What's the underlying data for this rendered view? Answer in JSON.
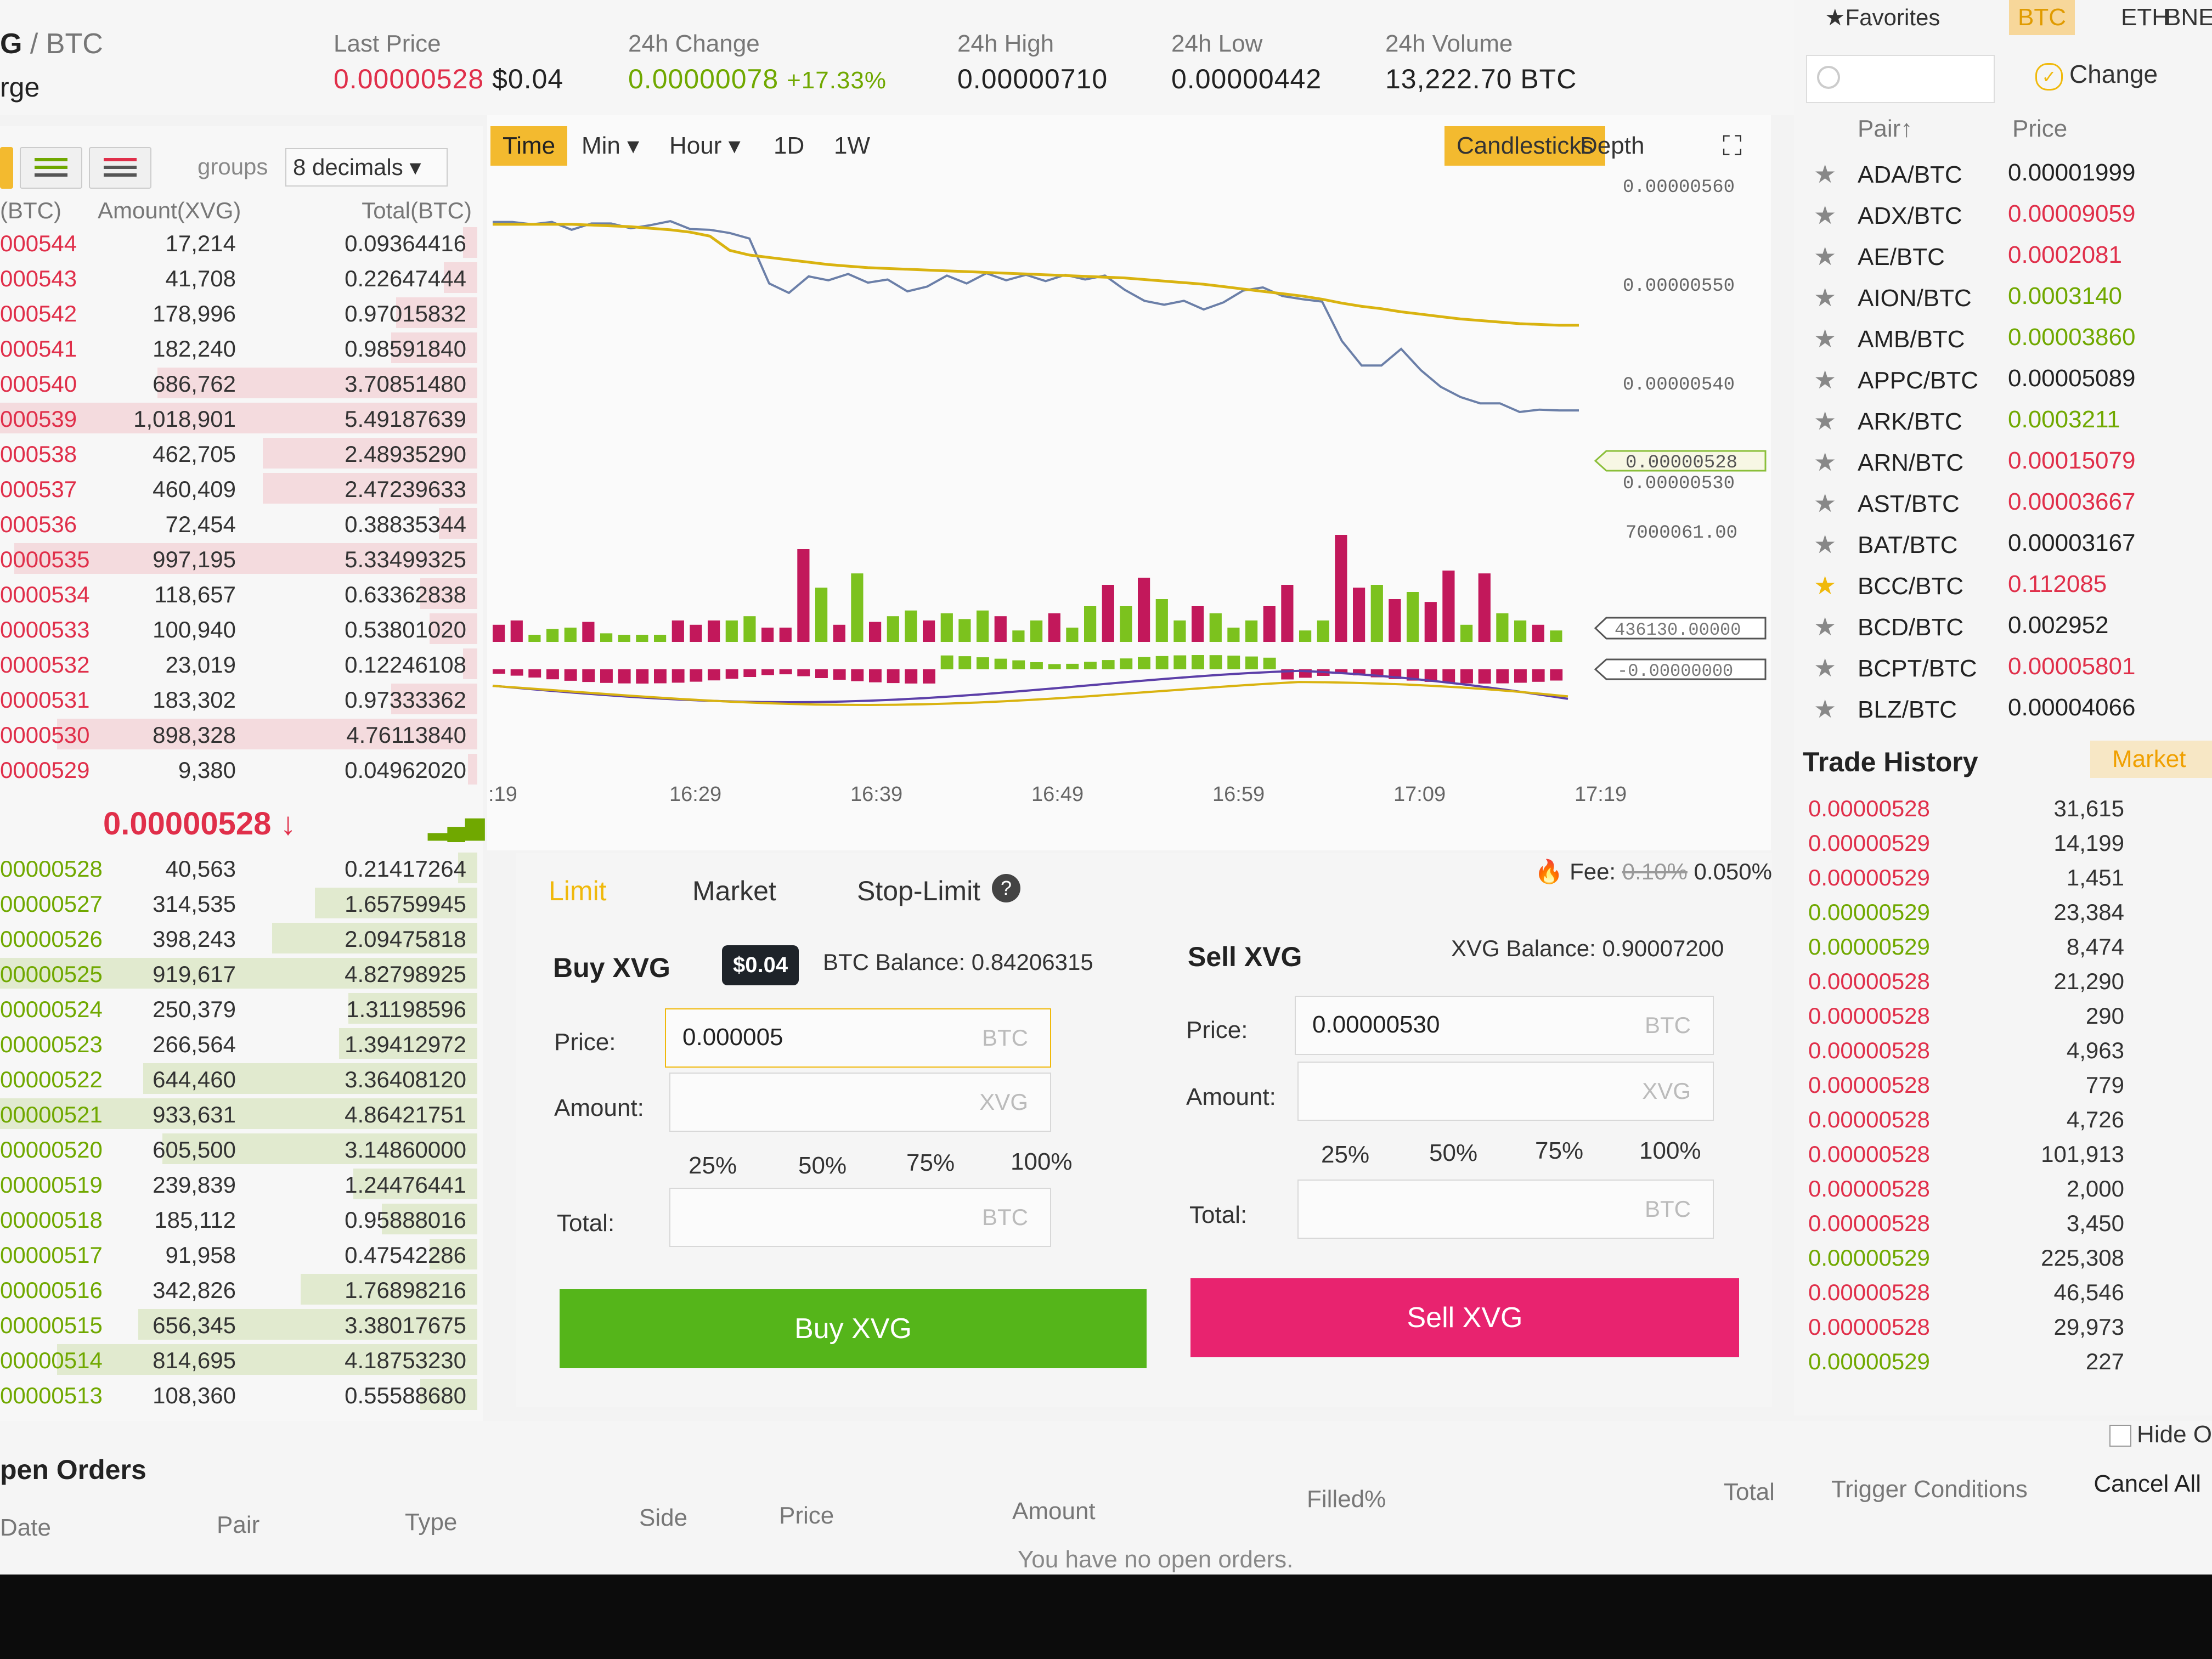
{
  "header": {
    "pair_left": "G",
    "pair_sep": " / ",
    "pair_quote": "BTC",
    "pair_sub": "rge",
    "last_price_label": "Last Price",
    "last_price": "0.00000528",
    "last_price_usd": "$0.04",
    "change_label": "24h Change",
    "change_value": "0.00000078",
    "change_pct": "+17.33%",
    "high_label": "24h High",
    "high_value": "0.00000710",
    "low_label": "24h Low",
    "low_value": "0.00000442",
    "volume_label": "24h Volume",
    "volume_value": "13,222.70 BTC"
  },
  "orderbook": {
    "groups_label": "groups",
    "decimals": "8 decimals",
    "col_price": "(BTC)",
    "col_amount": "Amount(XVG)",
    "col_total": "Total(BTC)",
    "asks": [
      {
        "p": "000544",
        "a": "17,214",
        "t": "0.09364416",
        "d": 0.03
      },
      {
        "p": "000543",
        "a": "41,708",
        "t": "0.22647444",
        "d": 0.07
      },
      {
        "p": "000542",
        "a": "178,996",
        "t": "0.97015832",
        "d": 0.17
      },
      {
        "p": "000541",
        "a": "182,240",
        "t": "0.98591840",
        "d": 0.18
      },
      {
        "p": "000540",
        "a": "686,762",
        "t": "3.70851480",
        "d": 0.67
      },
      {
        "p": "000539",
        "a": "1,018,901",
        "t": "5.49187639",
        "d": 1.0
      },
      {
        "p": "000538",
        "a": "462,705",
        "t": "2.48935290",
        "d": 0.45
      },
      {
        "p": "000537",
        "a": "460,409",
        "t": "2.47239633",
        "d": 0.45
      },
      {
        "p": "000536",
        "a": "72,454",
        "t": "0.38835344",
        "d": 0.08
      },
      {
        "p": "0000535",
        "a": "997,195",
        "t": "5.33499325",
        "d": 0.97
      },
      {
        "p": "0000534",
        "a": "118,657",
        "t": "0.63362838",
        "d": 0.12
      },
      {
        "p": "0000533",
        "a": "100,940",
        "t": "0.53801020",
        "d": 0.1
      },
      {
        "p": "0000532",
        "a": "23,019",
        "t": "0.12246108",
        "d": 0.03
      },
      {
        "p": "0000531",
        "a": "183,302",
        "t": "0.97333362",
        "d": 0.18
      },
      {
        "p": "0000530",
        "a": "898,328",
        "t": "4.76113840",
        "d": 0.88
      },
      {
        "p": "0000529",
        "a": "9,380",
        "t": "0.04962020",
        "d": 0.02
      }
    ],
    "last_price": "0.00000528 ↓",
    "bars_icon": "▂▄▆",
    "bids": [
      {
        "p": "00000528",
        "a": "40,563",
        "t": "0.21417264",
        "d": 0.04
      },
      {
        "p": "00000527",
        "a": "314,535",
        "t": "1.65759945",
        "d": 0.34
      },
      {
        "p": "00000526",
        "a": "398,243",
        "t": "2.09475818",
        "d": 0.43
      },
      {
        "p": "00000525",
        "a": "919,617",
        "t": "4.82798925",
        "d": 1.0
      },
      {
        "p": "00000524",
        "a": "250,379",
        "t": "1.31198596",
        "d": 0.27
      },
      {
        "p": "00000523",
        "a": "266,564",
        "t": "1.39412972",
        "d": 0.29
      },
      {
        "p": "00000522",
        "a": "644,460",
        "t": "3.36408120",
        "d": 0.7
      },
      {
        "p": "00000521",
        "a": "933,631",
        "t": "4.86421751",
        "d": 1.0
      },
      {
        "p": "00000520",
        "a": "605,500",
        "t": "3.14860000",
        "d": 0.66
      },
      {
        "p": "00000519",
        "a": "239,839",
        "t": "1.24476441",
        "d": 0.26
      },
      {
        "p": "00000518",
        "a": "185,112",
        "t": "0.95888016",
        "d": 0.2
      },
      {
        "p": "00000517",
        "a": "91,958",
        "t": "0.47542286",
        "d": 0.1
      },
      {
        "p": "00000516",
        "a": "342,826",
        "t": "1.76898216",
        "d": 0.37
      },
      {
        "p": "00000515",
        "a": "656,345",
        "t": "3.38017675",
        "d": 0.71
      },
      {
        "p": "00000514",
        "a": "814,695",
        "t": "4.18753230",
        "d": 0.88
      },
      {
        "p": "00000513",
        "a": "108,360",
        "t": "0.55588680",
        "d": 0.12
      }
    ]
  },
  "chart_tabs": {
    "time": "Time",
    "min": "Min ▾",
    "hour": "Hour ▾",
    "d1": "1D",
    "w1": "1W",
    "candlesticks": "Candlesticks",
    "depth": "Depth",
    "fullscreen_icon": "⛶"
  },
  "chart_data": {
    "type": "line",
    "x_labels": [
      ":19",
      "16:29",
      "16:39",
      "16:49",
      "16:59",
      "17:09",
      "17:19"
    ],
    "y_labels": [
      "0.00000560",
      "0.00000550",
      "0.00000540",
      "0.00000530"
    ],
    "price_tag": "0.00000528",
    "volume_label": "7000061.00",
    "volume_tag": "436130.00000",
    "macd_tag": "-0.00000000",
    "series": [
      {
        "values": [
          554.9,
          554.9,
          554.6,
          554.9,
          553.9,
          554.7,
          554.7,
          554.1,
          554.5,
          555.0,
          554.0,
          553.9,
          553.5,
          552.8,
          547.1,
          545.9,
          548.0,
          547.5,
          548.3,
          547.2,
          547.6,
          546.1,
          546.7,
          548.1,
          547.1,
          548.4,
          547.5,
          548.2,
          547.4,
          548.2,
          547.6,
          548.1,
          546.3,
          544.9,
          544.4,
          544.9,
          543.8,
          544.7,
          546.2,
          546.6,
          545.5,
          545.1,
          544.8,
          539.8,
          536.7,
          536.7,
          538.8,
          536.1,
          534.0,
          532.7,
          531.9,
          531.9,
          530.8,
          531.1,
          531.0,
          531.0
        ]
      },
      {
        "values": [
          554.6,
          554.6,
          554.6,
          554.6,
          554.6,
          554.5,
          554.4,
          554.3,
          554.1,
          553.9,
          553.6,
          553.1,
          551.3,
          550.7,
          550.4,
          550.1,
          549.8,
          549.5,
          549.3,
          549.1,
          549.0,
          548.9,
          548.8,
          548.7,
          548.6,
          548.5,
          548.4,
          548.3,
          548.2,
          548.1,
          548.0,
          547.9,
          547.8,
          547.6,
          547.4,
          547.2,
          547.0,
          546.7,
          546.4,
          546.1,
          545.8,
          545.5,
          545.1,
          544.6,
          544.2,
          543.9,
          543.5,
          543.2,
          542.9,
          542.6,
          542.4,
          542.2,
          542.0,
          541.9,
          541.8,
          541.8
        ]
      }
    ],
    "volume": [
      12,
      15,
      5,
      9,
      10,
      14,
      6,
      5,
      5,
      5,
      15,
      12,
      15,
      15,
      18,
      10,
      10,
      65,
      38,
      12,
      48,
      14,
      18,
      22,
      15,
      20,
      16,
      22,
      18,
      8,
      15,
      20,
      10,
      25,
      40,
      25,
      45,
      30,
      15,
      25,
      20,
      10,
      15,
      25,
      40,
      8,
      15,
      75,
      38,
      40,
      30,
      35,
      28,
      50,
      12,
      48,
      20,
      15,
      12,
      8
    ],
    "volume_colors": [
      "r",
      "r",
      "g",
      "g",
      "g",
      "r",
      "g",
      "g",
      "g",
      "g",
      "r",
      "r",
      "r",
      "g",
      "g",
      "r",
      "r",
      "r",
      "g",
      "r",
      "g",
      "r",
      "g",
      "g",
      "r",
      "g",
      "g",
      "g",
      "r",
      "g",
      "g",
      "r",
      "g",
      "g",
      "r",
      "g",
      "r",
      "g",
      "g",
      "r",
      "g",
      "g",
      "g",
      "r",
      "r",
      "g",
      "g",
      "r",
      "r",
      "g",
      "r",
      "g",
      "r",
      "r",
      "g",
      "r",
      "g",
      "g",
      "r",
      "g"
    ]
  },
  "form": {
    "tab_limit": "Limit",
    "tab_market": "Market",
    "tab_stop": "Stop-Limit",
    "help_icon": "?",
    "fee_label": "Fee:",
    "fee_old": "0.10%",
    "fee_new": "0.050%",
    "fire_icon": "🔥",
    "buy": {
      "title": "Buy XVG",
      "tooltip": "$0.04",
      "balance": "BTC Balance: 0.84206315",
      "price_label": "Price:",
      "price_value": "0.000005",
      "price_unit": "BTC",
      "amount_label": "Amount:",
      "amount_unit": "XVG",
      "total_label": "Total:",
      "total_unit": "BTC",
      "button": "Buy XVG"
    },
    "sell": {
      "title": "Sell XVG",
      "balance": "XVG Balance: 0.90007200",
      "price_label": "Price:",
      "price_value": "0.00000530",
      "price_unit": "BTC",
      "amount_label": "Amount:",
      "amount_unit": "XVG",
      "total_label": "Total:",
      "total_unit": "BTC",
      "button": "Sell XVG"
    },
    "pcts": [
      "25%",
      "50%",
      "75%",
      "100%"
    ]
  },
  "markets": {
    "favorites": "★Favorites",
    "tab_btc": "BTC",
    "tab_eth": "ETH",
    "tab_bnb": "BNE",
    "change_label": "Change",
    "check_icon": "✓",
    "col_pair": "Pair↑",
    "col_price": "Price",
    "rows": [
      {
        "pair": "ADA/BTC",
        "price": "0.00001999",
        "c": "n"
      },
      {
        "pair": "ADX/BTC",
        "price": "0.00009059",
        "c": "r"
      },
      {
        "pair": "AE/BTC",
        "price": "0.0002081",
        "c": "r"
      },
      {
        "pair": "AION/BTC",
        "price": "0.0003140",
        "c": "g"
      },
      {
        "pair": "AMB/BTC",
        "price": "0.00003860",
        "c": "g"
      },
      {
        "pair": "APPC/BTC",
        "price": "0.00005089",
        "c": "n"
      },
      {
        "pair": "ARK/BTC",
        "price": "0.0003211",
        "c": "g"
      },
      {
        "pair": "ARN/BTC",
        "price": "0.00015079",
        "c": "r"
      },
      {
        "pair": "AST/BTC",
        "price": "0.00003667",
        "c": "r"
      },
      {
        "pair": "BAT/BTC",
        "price": "0.00003167",
        "c": "n"
      },
      {
        "pair": "BCC/BTC",
        "price": "0.112085",
        "c": "r",
        "fav": true
      },
      {
        "pair": "BCD/BTC",
        "price": "0.002952",
        "c": "n"
      },
      {
        "pair": "BCPT/BTC",
        "price": "0.00005801",
        "c": "r"
      },
      {
        "pair": "BLZ/BTC",
        "price": "0.00004066",
        "c": "n"
      }
    ]
  },
  "trades": {
    "title": "Trade History",
    "tab": "Market",
    "rows": [
      {
        "p": "0.00000528",
        "a": "31,615",
        "c": "r"
      },
      {
        "p": "0.00000529",
        "a": "14,199",
        "c": "r"
      },
      {
        "p": "0.00000529",
        "a": "1,451",
        "c": "r"
      },
      {
        "p": "0.00000529",
        "a": "23,384",
        "c": "g"
      },
      {
        "p": "0.00000529",
        "a": "8,474",
        "c": "g"
      },
      {
        "p": "0.00000528",
        "a": "21,290",
        "c": "r"
      },
      {
        "p": "0.00000528",
        "a": "290",
        "c": "r"
      },
      {
        "p": "0.00000528",
        "a": "4,963",
        "c": "r"
      },
      {
        "p": "0.00000528",
        "a": "779",
        "c": "r"
      },
      {
        "p": "0.00000528",
        "a": "4,726",
        "c": "r"
      },
      {
        "p": "0.00000528",
        "a": "101,913",
        "c": "r"
      },
      {
        "p": "0.00000528",
        "a": "2,000",
        "c": "r"
      },
      {
        "p": "0.00000528",
        "a": "3,450",
        "c": "r"
      },
      {
        "p": "0.00000529",
        "a": "225,308",
        "c": "g"
      },
      {
        "p": "0.00000528",
        "a": "46,546",
        "c": "r"
      },
      {
        "p": "0.00000528",
        "a": "29,973",
        "c": "r"
      },
      {
        "p": "0.00000529",
        "a": "227",
        "c": "g"
      }
    ]
  },
  "orders": {
    "title": "pen Orders",
    "hide_label": "Hide O",
    "cols": [
      "Date",
      "Pair",
      "Type",
      "Side",
      "Price",
      "Amount",
      "Filled%",
      "Total",
      "Trigger Conditions"
    ],
    "cancel_all": "Cancel All",
    "empty": "You have no open orders."
  },
  "colors": {
    "red": "#e02f4a",
    "green": "#70a800",
    "accent": "#f0b90b",
    "buy": "#55b51a",
    "sell": "#e8236f"
  }
}
